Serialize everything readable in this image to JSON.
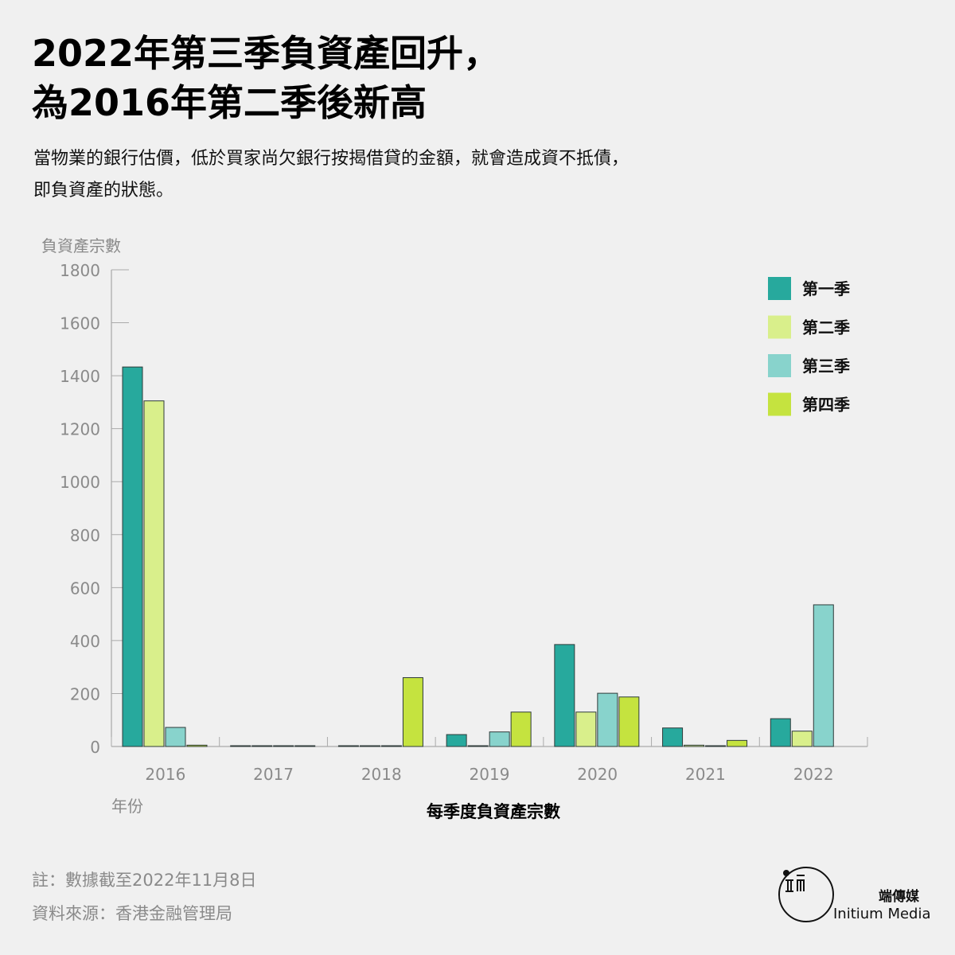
{
  "header": {
    "title_line1": "2022年第三季負資產回升，",
    "title_line2": "為2016年第二季後新高",
    "subtitle_line1": "當物業的銀行估價，低於買家尚欠銀行按揭借貸的金額，就會造成資不抵債，",
    "subtitle_line2": "即負資產的狀態。"
  },
  "chart_data": {
    "type": "bar",
    "title": "每季度負資產宗數",
    "ylabel": "負資產宗數",
    "xlabel": "年份",
    "ylim": [
      0,
      1800
    ],
    "yticks": [
      "0",
      "200",
      "400",
      "600",
      "800",
      "1000",
      "1200",
      "1400",
      "1600",
      "1800"
    ],
    "categories": [
      "2016",
      "2017",
      "2018",
      "2019",
      "2020",
      "2021",
      "2022"
    ],
    "legend_position": "top-right",
    "grid": false,
    "series": [
      {
        "name": "第一季",
        "color": "#27a99d",
        "values": [
          1433,
          1,
          2,
          45,
          385,
          70,
          105
        ]
      },
      {
        "name": "第二季",
        "color": "#d9ef8b",
        "values": [
          1305,
          1,
          2,
          2,
          130,
          5,
          58
        ]
      },
      {
        "name": "第三季",
        "color": "#88d3cc",
        "values": [
          72,
          1,
          2,
          55,
          201,
          3,
          535
        ]
      },
      {
        "name": "第四季",
        "color": "#c5e33f",
        "values": [
          5,
          1,
          260,
          130,
          187,
          23,
          null
        ]
      }
    ]
  },
  "footer": {
    "note": "註：數據截至2022年11月8日",
    "source": "資料來源：香港金融管理局",
    "brand_cn": "端傳媒",
    "brand_en": "Initium Media"
  }
}
